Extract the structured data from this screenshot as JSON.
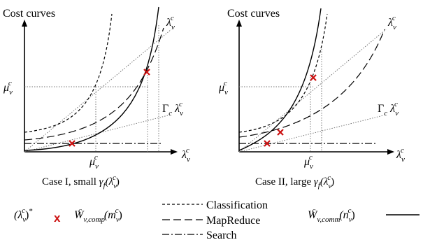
{
  "panels": [
    {
      "title": "Cost curves",
      "y_label": "μ",
      "x_label": "μ",
      "line_label": "λ",
      "gamma_label": "Γ",
      "gamma_sub": "c",
      "axis_label": "λ",
      "caption_pre": "Case I, small ",
      "caption_gamma": "γ",
      "caption_paren": "(λ",
      "caption_close": ")"
    },
    {
      "title": "Cost curves",
      "y_label": "μ",
      "x_label": "μ",
      "line_label": "λ",
      "gamma_label": "Γ",
      "gamma_sub": "c",
      "axis_label": "λ",
      "caption_pre": "Case II, large ",
      "caption_gamma": "γ",
      "caption_paren": "(λ",
      "caption_close": ")"
    }
  ],
  "sub": {
    "v": "v",
    "c": "c",
    "f": "f"
  },
  "legend": {
    "opt_label": "(λ",
    "opt_close": ")",
    "opt_star": "*",
    "opt_marker": "x",
    "comp_label": "W",
    "comp_sub": "v,comp",
    "comp_arg": "(m",
    "comm_label": "W",
    "comm_sub": "v,comm",
    "comm_arg": "(n",
    "close": ")",
    "items": [
      "Classification",
      "MapReduce",
      "Search"
    ]
  },
  "colors": {
    "marker": "#cc1111",
    "curve": "#000000",
    "guide": "#777777"
  }
}
